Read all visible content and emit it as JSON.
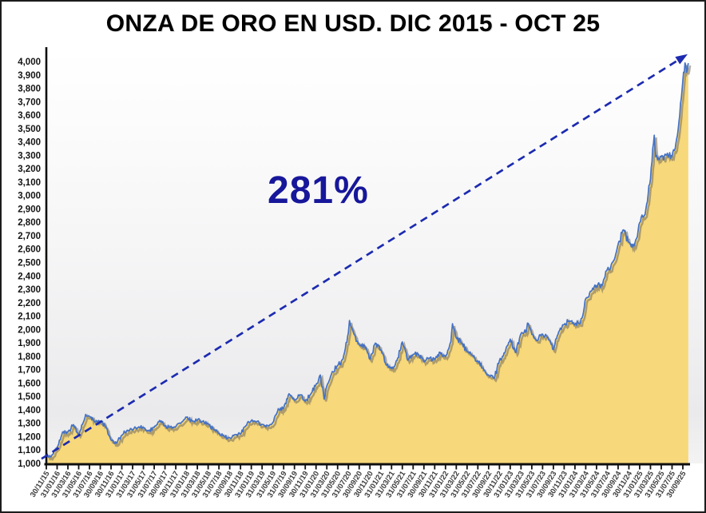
{
  "header": {
    "title": "ONZA DE ORO EN USD. DIC 2015 - OCT 25"
  },
  "chart_data": {
    "type": "area",
    "title": "ONZA DE ORO EN USD. DIC 2015 - OCT 25",
    "annotation": "281%",
    "legend": "none",
    "grid": false,
    "ylim": [
      1000,
      4000
    ],
    "y_ticks": {
      "min": 1000,
      "max": 4000,
      "step": 100
    },
    "y_tick_labels": [
      "1,000",
      "1,100",
      "1,200",
      "1,300",
      "1,400",
      "1,500",
      "1,600",
      "1,700",
      "1,800",
      "1,900",
      "2,000",
      "2,100",
      "2,200",
      "2,300",
      "2,400",
      "2,500",
      "2,600",
      "2,700",
      "2,800",
      "2,900",
      "3,000",
      "3,100",
      "3,200",
      "3,300",
      "3,400",
      "3,500",
      "3,600",
      "3,700",
      "3,800",
      "3,900",
      "4,000"
    ],
    "x_tick_labels": [
      "30/11/15",
      "31/01/16",
      "31/03/16",
      "31/05/16",
      "31/07/16",
      "30/09/16",
      "30/11/16",
      "31/01/17",
      "31/03/17",
      "31/05/17",
      "31/07/17",
      "30/09/17",
      "30/11/17",
      "31/01/18",
      "31/03/18",
      "31/05/18",
      "31/07/18",
      "30/09/18",
      "30/11/18",
      "31/01/19",
      "31/03/19",
      "31/05/19",
      "31/07/19",
      "30/09/19",
      "30/11/19",
      "31/01/20",
      "31/03/20",
      "31/05/20",
      "31/07/20",
      "30/09/20",
      "30/11/20",
      "31/01/21",
      "31/03/21",
      "31/05/21",
      "31/07/21",
      "30/09/21",
      "30/11/21",
      "31/01/22",
      "31/03/22",
      "31/05/22",
      "31/07/22",
      "30/09/22",
      "30/11/22",
      "31/01/23",
      "31/03/23",
      "31/05/23",
      "31/07/23",
      "30/09/23",
      "30/11/23",
      "31/01/24",
      "31/03/24",
      "31/05/24",
      "31/07/24",
      "30/09/24",
      "30/11/24",
      "31/01/25",
      "31/03/25",
      "31/05/25",
      "31/07/25",
      "30/09/25"
    ],
    "x_unit": "months_since_30/11/15_one_tick_every_2_months",
    "series": [
      {
        "name": "Onza de oro en USD",
        "points": [
          [
            0,
            1065
          ],
          [
            0.5,
            1048
          ],
          [
            1,
            1060
          ],
          [
            2,
            1118
          ],
          [
            3,
            1234
          ],
          [
            4,
            1233
          ],
          [
            5,
            1290
          ],
          [
            6,
            1215
          ],
          [
            7,
            1321
          ],
          [
            7.3,
            1366
          ],
          [
            8,
            1351
          ],
          [
            9,
            1309
          ],
          [
            10,
            1316
          ],
          [
            11,
            1277
          ],
          [
            12,
            1173
          ],
          [
            13,
            1152
          ],
          [
            14,
            1210
          ],
          [
            15,
            1249
          ],
          [
            16,
            1249
          ],
          [
            17,
            1268
          ],
          [
            18,
            1269
          ],
          [
            19,
            1242
          ],
          [
            20,
            1269
          ],
          [
            21,
            1321
          ],
          [
            22,
            1280
          ],
          [
            23,
            1271
          ],
          [
            24,
            1275
          ],
          [
            25,
            1303
          ],
          [
            26,
            1345
          ],
          [
            27,
            1318
          ],
          [
            28,
            1325
          ],
          [
            29,
            1315
          ],
          [
            30,
            1298
          ],
          [
            31,
            1253
          ],
          [
            32,
            1224
          ],
          [
            33,
            1201
          ],
          [
            34,
            1192
          ],
          [
            35,
            1215
          ],
          [
            36,
            1222
          ],
          [
            37,
            1282
          ],
          [
            38,
            1321
          ],
          [
            39,
            1313
          ],
          [
            40,
            1292
          ],
          [
            41,
            1283
          ],
          [
            42,
            1306
          ],
          [
            43,
            1409
          ],
          [
            44,
            1414
          ],
          [
            45,
            1520
          ],
          [
            46,
            1472
          ],
          [
            47,
            1513
          ],
          [
            48,
            1464
          ],
          [
            49,
            1517
          ],
          [
            50,
            1589
          ],
          [
            50.8,
            1660
          ],
          [
            51.5,
            1480
          ],
          [
            52,
            1577
          ],
          [
            53,
            1686
          ],
          [
            54,
            1730
          ],
          [
            55,
            1781
          ],
          [
            56,
            1976
          ],
          [
            56.2,
            2067
          ],
          [
            57,
            1968
          ],
          [
            58,
            1886
          ],
          [
            59,
            1879
          ],
          [
            60,
            1777
          ],
          [
            61,
            1898
          ],
          [
            62,
            1848
          ],
          [
            63,
            1734
          ],
          [
            64,
            1708
          ],
          [
            65,
            1768
          ],
          [
            66,
            1907
          ],
          [
            67,
            1770
          ],
          [
            68,
            1814
          ],
          [
            69,
            1814
          ],
          [
            70,
            1757
          ],
          [
            71,
            1783
          ],
          [
            72,
            1775
          ],
          [
            73,
            1829
          ],
          [
            74,
            1797
          ],
          [
            75,
            1909
          ],
          [
            75.3,
            2043
          ],
          [
            76,
            1937
          ],
          [
            77,
            1897
          ],
          [
            78,
            1837
          ],
          [
            79,
            1807
          ],
          [
            80,
            1766
          ],
          [
            81,
            1711
          ],
          [
            82,
            1661
          ],
          [
            83,
            1634
          ],
          [
            84,
            1769
          ],
          [
            85,
            1824
          ],
          [
            86,
            1928
          ],
          [
            87,
            1827
          ],
          [
            88,
            1969
          ],
          [
            89,
            1990
          ],
          [
            89.2,
            2048
          ],
          [
            90,
            1963
          ],
          [
            91,
            1919
          ],
          [
            92,
            1965
          ],
          [
            93,
            1940
          ],
          [
            94,
            1849
          ],
          [
            95,
            1984
          ],
          [
            96,
            2036
          ],
          [
            97,
            2063
          ],
          [
            98,
            2040
          ],
          [
            99,
            2044
          ],
          [
            100,
            2230
          ],
          [
            101,
            2286
          ],
          [
            102,
            2327
          ],
          [
            103,
            2327
          ],
          [
            104,
            2448
          ],
          [
            105,
            2503
          ],
          [
            106,
            2635
          ],
          [
            107,
            2744
          ],
          [
            108,
            2651
          ],
          [
            109,
            2625
          ],
          [
            110,
            2798
          ],
          [
            111,
            2858
          ],
          [
            112,
            3124
          ],
          [
            112.7,
            3450
          ],
          [
            113,
            3289
          ],
          [
            114,
            3289
          ],
          [
            115,
            3303
          ],
          [
            116,
            3290
          ],
          [
            117,
            3448
          ],
          [
            118,
            3858
          ],
          [
            118.4,
            3990
          ],
          [
            118.7,
            3920
          ],
          [
            119,
            3988
          ]
        ]
      }
    ],
    "trend_arrow": {
      "style": "dashed",
      "start_idx": 0,
      "start_value": 1035,
      "end_idx": 118.6,
      "end_value": 4055
    },
    "colors": {
      "area_fill": "#F7D87A",
      "line": "#4472C4",
      "line_shadow": "rgba(115,108,92,0.55)",
      "arrow": "#1C2BB0",
      "annotation": "#17179B",
      "axis": "#0f0f0f",
      "x_label": "#3d3d3d",
      "y_label": "#141414"
    }
  }
}
